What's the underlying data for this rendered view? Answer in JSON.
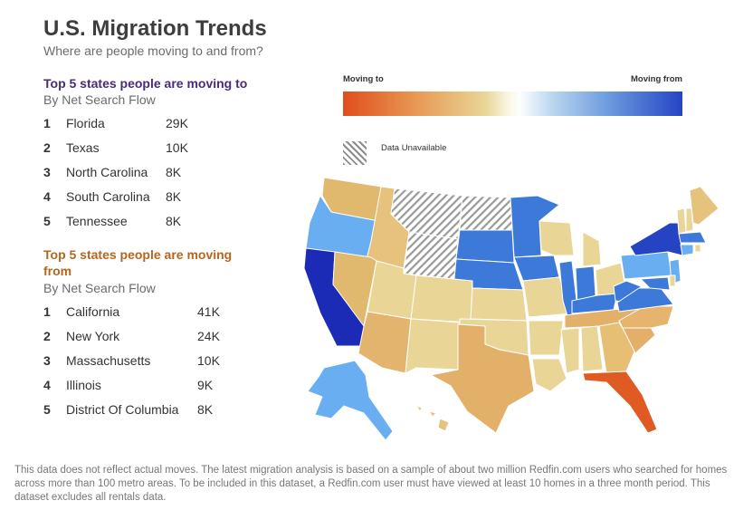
{
  "header": {
    "title": "U.S. Migration Trends",
    "subtitle": "Where are people moving to and from?"
  },
  "moving_to": {
    "heading": "Top 5 states people are moving to",
    "measure": "By Net Search Flow",
    "items": [
      {
        "rank": "1",
        "state": "Florida",
        "value": "29K"
      },
      {
        "rank": "2",
        "state": "Texas",
        "value": "10K"
      },
      {
        "rank": "3",
        "state": "North Carolina",
        "value": "8K"
      },
      {
        "rank": "4",
        "state": "South Carolina",
        "value": "8K"
      },
      {
        "rank": "5",
        "state": "Tennessee",
        "value": "8K"
      }
    ]
  },
  "moving_from": {
    "heading": "Top 5 states people are moving from",
    "measure": "By Net Search Flow",
    "items": [
      {
        "rank": "1",
        "state": "California",
        "value": "41K"
      },
      {
        "rank": "2",
        "state": "New York",
        "value": "24K"
      },
      {
        "rank": "3",
        "state": "Massachusetts",
        "value": "10K"
      },
      {
        "rank": "4",
        "state": "Illinois",
        "value": "9K"
      },
      {
        "rank": "5",
        "state": "District Of Columbia",
        "value": "8K"
      }
    ]
  },
  "legend": {
    "left_label": "Moving to",
    "right_label": "Moving from",
    "unavailable_label": "Data Unavailable",
    "colors": {
      "strong_to": "#e04e1c",
      "mid_to": "#e6b06a",
      "light_to": "#e9d697",
      "light_from": "#6cb0ef",
      "mid_from": "#3d79d8",
      "strong_from": "#1b2bb5"
    }
  },
  "footer": {
    "note": "This data does not reflect actual moves. The latest migration analysis is based on a sample of about two million Redfin.com users who searched for homes across more than 100 metro areas. To be included in this dataset, a Redfin.com user must have viewed at least 10 homes in a three month period. This dataset excludes all rentals data."
  }
}
